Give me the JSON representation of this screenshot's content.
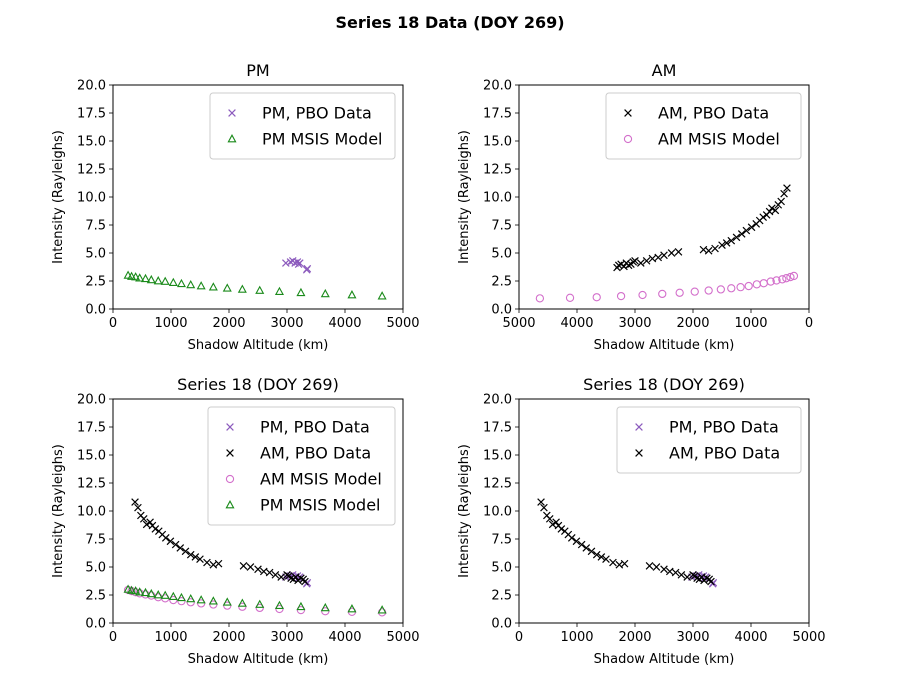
{
  "figure": {
    "suptitle": "Series 18 Data (DOY 269)"
  },
  "colors": {
    "pm_pbo": "#8c5bbd",
    "am_pbo": "#000000",
    "am_msis": "#d36fcb",
    "pm_msis": "#1a8a1a"
  },
  "chart_data": [
    {
      "type": "scatter",
      "title": "PM",
      "xlabel": "Shadow Altitude (km)",
      "ylabel": "Intensity (Rayleighs)",
      "xlim": [
        0,
        5000
      ],
      "ylim": [
        0,
        20
      ],
      "x_inverted": false,
      "xticks": [
        "0",
        "1000",
        "2000",
        "3000",
        "4000",
        "5000"
      ],
      "yticks": [
        "0.0",
        "2.5",
        "5.0",
        "7.5",
        "10.0",
        "12.5",
        "15.0",
        "17.5",
        "20.0"
      ],
      "legend_position": "upper right",
      "series": [
        {
          "name": "PM, PBO Data",
          "marker": "x",
          "color_key": "pm_pbo",
          "x": [
            2980,
            3060,
            3100,
            3140,
            3180,
            3200,
            3220,
            3340,
            3350
          ],
          "y": [
            4.1,
            4.2,
            4.3,
            4.1,
            4.2,
            4.0,
            4.1,
            3.5,
            3.6
          ]
        },
        {
          "name": "PM MSIS Model",
          "marker": "triangle",
          "color_key": "pm_msis",
          "x": [
            260,
            320,
            390,
            460,
            560,
            660,
            780,
            900,
            1040,
            1180,
            1340,
            1520,
            1730,
            1970,
            2230,
            2530,
            2870,
            3240,
            3660,
            4120,
            4640
          ],
          "y": [
            3.0,
            2.9,
            2.85,
            2.75,
            2.7,
            2.6,
            2.5,
            2.45,
            2.35,
            2.25,
            2.15,
            2.05,
            1.95,
            1.85,
            1.75,
            1.65,
            1.55,
            1.45,
            1.35,
            1.25,
            1.15
          ]
        }
      ]
    },
    {
      "type": "scatter",
      "title": "AM",
      "xlabel": "Shadow Altitude (km)",
      "ylabel": "Intensity (Rayleighs)",
      "xlim": [
        5000,
        0
      ],
      "ylim": [
        0,
        20
      ],
      "x_inverted": true,
      "xticks": [
        "5000",
        "4000",
        "3000",
        "2000",
        "1000",
        "0"
      ],
      "yticks": [
        "0.0",
        "2.5",
        "5.0",
        "7.5",
        "10.0",
        "12.5",
        "15.0",
        "17.5",
        "20.0"
      ],
      "legend_position": "upper right",
      "series": [
        {
          "name": "AM, PBO Data",
          "marker": "x",
          "color_key": "am_pbo",
          "x": [
            3310,
            3280,
            3240,
            3190,
            3150,
            3110,
            3070,
            3030,
            3000,
            2900,
            2800,
            2700,
            2600,
            2500,
            2370,
            2250,
            1820,
            1730,
            1620,
            1500,
            1420,
            1340,
            1250,
            1160,
            1080,
            990,
            910,
            850,
            790,
            730,
            680,
            640,
            580,
            530,
            480,
            430,
            380
          ],
          "y": [
            3.7,
            3.9,
            4.0,
            3.8,
            4.1,
            3.9,
            4.0,
            4.2,
            4.3,
            4.1,
            4.3,
            4.5,
            4.6,
            4.8,
            5.0,
            5.1,
            5.3,
            5.2,
            5.4,
            5.7,
            5.9,
            6.1,
            6.4,
            6.7,
            7.0,
            7.3,
            7.6,
            7.9,
            8.2,
            8.4,
            8.7,
            9.0,
            8.8,
            9.3,
            9.6,
            10.3,
            10.8
          ]
        },
        {
          "name": "AM MSIS Model",
          "marker": "circle",
          "color_key": "am_msis",
          "x": [
            4640,
            4120,
            3660,
            3240,
            2870,
            2530,
            2230,
            1970,
            1730,
            1520,
            1340,
            1180,
            1040,
            900,
            780,
            660,
            560,
            460,
            390,
            320,
            260
          ],
          "y": [
            0.95,
            1.0,
            1.05,
            1.15,
            1.25,
            1.35,
            1.45,
            1.55,
            1.65,
            1.75,
            1.85,
            1.95,
            2.05,
            2.2,
            2.3,
            2.45,
            2.55,
            2.65,
            2.75,
            2.85,
            2.95
          ]
        }
      ]
    },
    {
      "type": "scatter",
      "title": "Series 18 (DOY 269)",
      "xlabel": "Shadow Altitude (km)",
      "ylabel": "Intensity (Rayleighs)",
      "xlim": [
        0,
        5000
      ],
      "ylim": [
        0,
        20
      ],
      "x_inverted": false,
      "xticks": [
        "0",
        "1000",
        "2000",
        "3000",
        "4000",
        "5000"
      ],
      "yticks": [
        "0.0",
        "2.5",
        "5.0",
        "7.5",
        "10.0",
        "12.5",
        "15.0",
        "17.5",
        "20.0"
      ],
      "legend_position": "upper right",
      "series": [
        {
          "name": "PM, PBO Data",
          "marker": "x",
          "color_key": "pm_pbo",
          "x": [
            2980,
            3060,
            3100,
            3140,
            3180,
            3200,
            3220,
            3340,
            3350
          ],
          "y": [
            4.1,
            4.2,
            4.3,
            4.1,
            4.2,
            4.0,
            4.1,
            3.5,
            3.6
          ]
        },
        {
          "name": "AM, PBO Data",
          "marker": "x",
          "color_key": "am_pbo",
          "x": [
            3310,
            3280,
            3240,
            3190,
            3150,
            3110,
            3070,
            3030,
            3000,
            2900,
            2800,
            2700,
            2600,
            2500,
            2370,
            2250,
            1820,
            1730,
            1620,
            1500,
            1420,
            1340,
            1250,
            1160,
            1080,
            990,
            910,
            850,
            790,
            730,
            680,
            640,
            580,
            530,
            480,
            430,
            380
          ],
          "y": [
            3.7,
            3.9,
            4.0,
            3.8,
            4.1,
            3.9,
            4.0,
            4.2,
            4.3,
            4.1,
            4.3,
            4.5,
            4.6,
            4.8,
            5.0,
            5.1,
            5.3,
            5.2,
            5.4,
            5.7,
            5.9,
            6.1,
            6.4,
            6.7,
            7.0,
            7.3,
            7.6,
            7.9,
            8.2,
            8.4,
            8.7,
            9.0,
            8.8,
            9.3,
            9.6,
            10.3,
            10.8
          ]
        },
        {
          "name": "AM MSIS Model",
          "marker": "circle",
          "color_key": "am_msis",
          "x": [
            4640,
            4120,
            3660,
            3240,
            2870,
            2530,
            2230,
            1970,
            1730,
            1520,
            1340,
            1180,
            1040,
            900,
            780,
            660,
            560,
            460,
            390,
            320,
            260
          ],
          "y": [
            0.95,
            1.0,
            1.05,
            1.15,
            1.25,
            1.35,
            1.45,
            1.55,
            1.65,
            1.75,
            1.85,
            1.95,
            2.05,
            2.2,
            2.3,
            2.45,
            2.55,
            2.65,
            2.75,
            2.85,
            2.95
          ]
        },
        {
          "name": "PM MSIS Model",
          "marker": "triangle",
          "color_key": "pm_msis",
          "x": [
            260,
            320,
            390,
            460,
            560,
            660,
            780,
            900,
            1040,
            1180,
            1340,
            1520,
            1730,
            1970,
            2230,
            2530,
            2870,
            3240,
            3660,
            4120,
            4640
          ],
          "y": [
            3.0,
            2.9,
            2.85,
            2.75,
            2.7,
            2.6,
            2.5,
            2.45,
            2.35,
            2.25,
            2.15,
            2.05,
            1.95,
            1.85,
            1.75,
            1.65,
            1.55,
            1.45,
            1.35,
            1.25,
            1.15
          ]
        }
      ]
    },
    {
      "type": "scatter",
      "title": "Series 18 (DOY 269)",
      "xlabel": "Shadow Altitude (km)",
      "ylabel": "Intensity (Rayleighs)",
      "xlim": [
        0,
        5000
      ],
      "ylim": [
        0,
        20
      ],
      "x_inverted": false,
      "xticks": [
        "0",
        "1000",
        "2000",
        "3000",
        "4000",
        "5000"
      ],
      "yticks": [
        "0.0",
        "2.5",
        "5.0",
        "7.5",
        "10.0",
        "12.5",
        "15.0",
        "17.5",
        "20.0"
      ],
      "legend_position": "upper right",
      "series": [
        {
          "name": "PM, PBO Data",
          "marker": "x",
          "color_key": "pm_pbo",
          "x": [
            2980,
            3060,
            3100,
            3140,
            3180,
            3200,
            3220,
            3340,
            3350
          ],
          "y": [
            4.1,
            4.2,
            4.3,
            4.1,
            4.2,
            4.0,
            4.1,
            3.5,
            3.6
          ]
        },
        {
          "name": "AM, PBO Data",
          "marker": "x",
          "color_key": "am_pbo",
          "x": [
            3310,
            3280,
            3240,
            3190,
            3150,
            3110,
            3070,
            3030,
            3000,
            2900,
            2800,
            2700,
            2600,
            2500,
            2370,
            2250,
            1820,
            1730,
            1620,
            1500,
            1420,
            1340,
            1250,
            1160,
            1080,
            990,
            910,
            850,
            790,
            730,
            680,
            640,
            580,
            530,
            480,
            430,
            380
          ],
          "y": [
            3.7,
            3.9,
            4.0,
            3.8,
            4.1,
            3.9,
            4.0,
            4.2,
            4.3,
            4.1,
            4.3,
            4.5,
            4.6,
            4.8,
            5.0,
            5.1,
            5.3,
            5.2,
            5.4,
            5.7,
            5.9,
            6.1,
            6.4,
            6.7,
            7.0,
            7.3,
            7.6,
            7.9,
            8.2,
            8.4,
            8.7,
            9.0,
            8.8,
            9.3,
            9.6,
            10.3,
            10.8
          ]
        }
      ]
    }
  ]
}
